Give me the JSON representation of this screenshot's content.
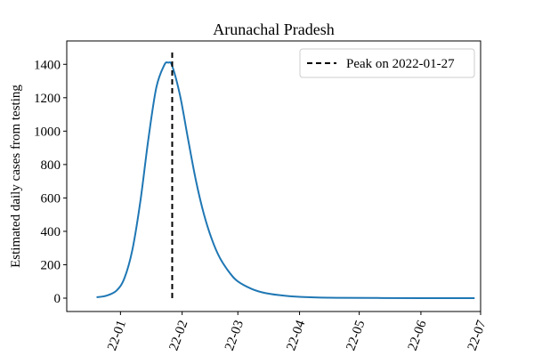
{
  "chart_data": {
    "type": "line",
    "title": "Arunachal Pradesh",
    "xlabel": "",
    "ylabel": "Estimated daily cases from testing",
    "x_range": [
      "2021-12-05",
      "2022-07-01"
    ],
    "ylim": [
      -80,
      1540
    ],
    "x_ticks": [
      {
        "date": "2022-01-01",
        "label": "22-01"
      },
      {
        "date": "2022-02-01",
        "label": "22-02"
      },
      {
        "date": "2022-03-01",
        "label": "22-03"
      },
      {
        "date": "2022-04-01",
        "label": "22-04"
      },
      {
        "date": "2022-05-01",
        "label": "22-05"
      },
      {
        "date": "2022-06-01",
        "label": "22-06"
      },
      {
        "date": "2022-07-01",
        "label": "22-07"
      }
    ],
    "y_ticks": [
      0,
      200,
      400,
      600,
      800,
      1000,
      1200,
      1400
    ],
    "grid": false,
    "legend": "top-right",
    "series": [
      {
        "color": "#1f77b4",
        "points": [
          [
            "2021-12-20",
            5
          ],
          [
            "2021-12-25",
            15
          ],
          [
            "2021-12-30",
            45
          ],
          [
            "2022-01-03",
            120
          ],
          [
            "2022-01-07",
            290
          ],
          [
            "2022-01-11",
            580
          ],
          [
            "2022-01-15",
            950
          ],
          [
            "2022-01-19",
            1260
          ],
          [
            "2022-01-23",
            1395
          ],
          [
            "2022-01-25",
            1410
          ],
          [
            "2022-01-27",
            1390
          ],
          [
            "2022-01-31",
            1210
          ],
          [
            "2022-02-04",
            950
          ],
          [
            "2022-02-08",
            700
          ],
          [
            "2022-02-12",
            500
          ],
          [
            "2022-02-16",
            350
          ],
          [
            "2022-02-20",
            240
          ],
          [
            "2022-02-25",
            150
          ],
          [
            "2022-03-01",
            100
          ],
          [
            "2022-03-08",
            55
          ],
          [
            "2022-03-15",
            30
          ],
          [
            "2022-03-25",
            14
          ],
          [
            "2022-04-05",
            6
          ],
          [
            "2022-04-20",
            2
          ],
          [
            "2022-05-10",
            1
          ],
          [
            "2022-06-01",
            0
          ],
          [
            "2022-06-28",
            0
          ]
        ]
      }
    ],
    "annotations": [
      {
        "type": "vline",
        "date": "2022-01-27",
        "ymin": 0,
        "ymax": 1480,
        "style": "dashed",
        "color": "#000000",
        "label": "Peak on 2022-01-27"
      }
    ]
  }
}
